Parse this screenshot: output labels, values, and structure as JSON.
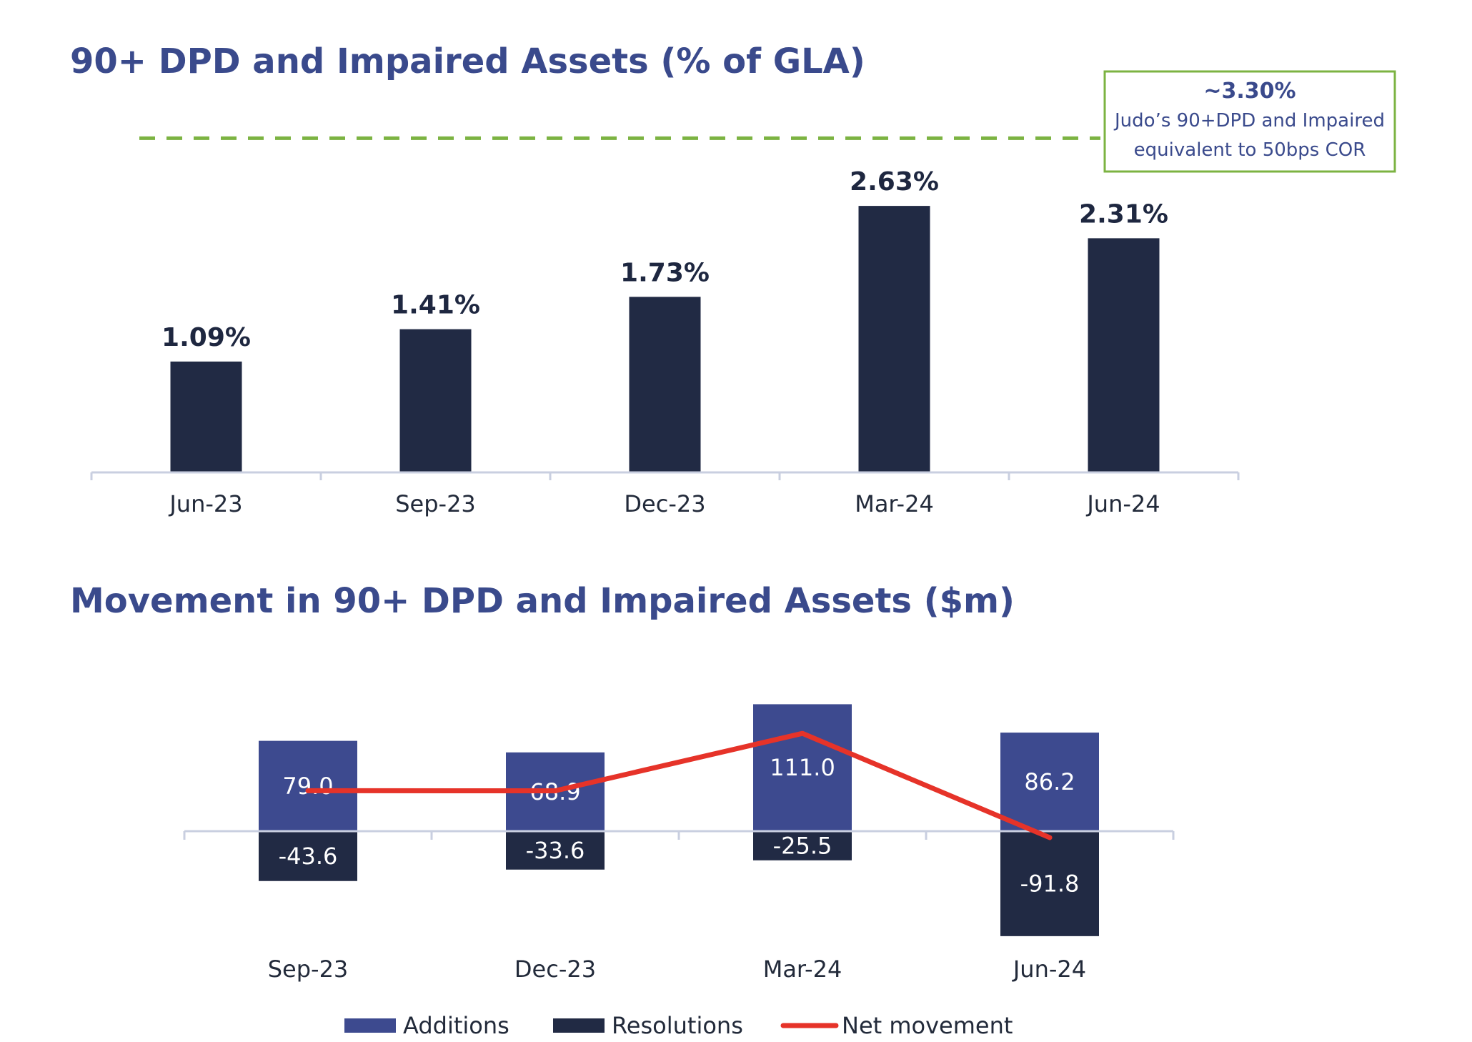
{
  "chart_data": [
    {
      "type": "bar",
      "title": "90+ DPD and Impaired Assets (% of GLA)",
      "categories": [
        "Jun-23",
        "Sep-23",
        "Dec-23",
        "Mar-24",
        "Jun-24"
      ],
      "values": [
        1.09,
        1.41,
        1.73,
        2.63,
        2.31
      ],
      "value_labels": [
        "1.09%",
        "1.41%",
        "1.73%",
        "2.63%",
        "2.31%"
      ],
      "colors": {
        "bar": "#212a44",
        "reference": "#7cb342",
        "axis": "#c9cfe0"
      },
      "reference_line": {
        "value": 3.3,
        "annotation": {
          "value_label": "~3.30%",
          "line1": "Judo’s 90+DPD and Impaired",
          "line2": "equivalent to 50bps COR"
        }
      }
    },
    {
      "type": "bar",
      "title": "Movement in 90+ DPD and Impaired Assets ($m)",
      "categories": [
        "Sep-23",
        "Dec-23",
        "Mar-24",
        "Jun-24"
      ],
      "series": [
        {
          "name": "Additions",
          "values": [
            79.0,
            68.9,
            111.0,
            86.2
          ],
          "labels": [
            "79.0",
            "68.9",
            "111.0",
            "86.2"
          ],
          "color": "#3d4a8f"
        },
        {
          "name": "Resolutions",
          "values": [
            -43.6,
            -33.6,
            -25.5,
            -91.8
          ],
          "labels": [
            "-43.6",
            "-33.6",
            "-25.5",
            "-91.8"
          ],
          "color": "#212a44"
        },
        {
          "name": "Net movement",
          "values": [
            35.4,
            35.3,
            85.5,
            -5.6
          ],
          "type": "line",
          "color": "#e63329"
        }
      ],
      "legend": "bottom",
      "colors": {
        "axis": "#c9cfe0"
      }
    }
  ]
}
